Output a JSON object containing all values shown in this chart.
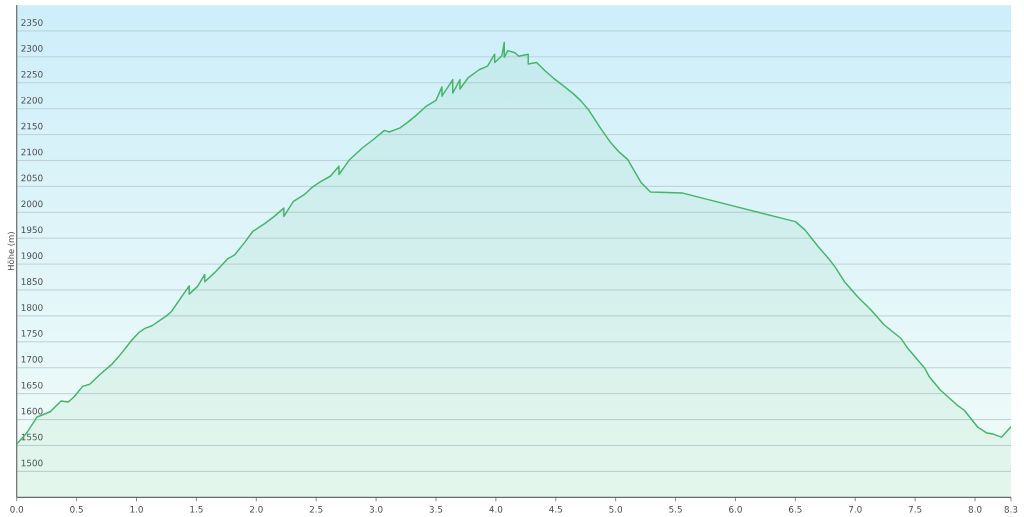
{
  "chart_data": {
    "type": "area",
    "ylabel": "Höhe (m)",
    "x": [
      0.0,
      0.08,
      0.17,
      0.28,
      0.37,
      0.43,
      0.48,
      0.55,
      0.61,
      0.69,
      0.8,
      0.85,
      0.96,
      1.02,
      1.07,
      1.13,
      1.21,
      1.25,
      1.29,
      1.44,
      1.44,
      1.51,
      1.57,
      1.57,
      1.65,
      1.76,
      1.82,
      1.9,
      1.97,
      2.07,
      2.15,
      2.23,
      2.23,
      2.31,
      2.4,
      2.46,
      2.53,
      2.62,
      2.69,
      2.69,
      2.78,
      2.89,
      2.98,
      3.07,
      3.11,
      3.2,
      3.26,
      3.33,
      3.42,
      3.5,
      3.55,
      3.55,
      3.64,
      3.64,
      3.7,
      3.7,
      3.77,
      3.86,
      3.93,
      3.99,
      3.99,
      4.05,
      4.07,
      4.07,
      4.1,
      4.16,
      4.19,
      4.27,
      4.27,
      4.34,
      4.41,
      4.48,
      4.57,
      4.65,
      4.71,
      4.77,
      4.88,
      4.96,
      5.03,
      5.1,
      5.21,
      5.29,
      5.56,
      6.5,
      6.58,
      6.69,
      6.78,
      6.83,
      6.91,
      7.02,
      7.13,
      7.24,
      7.31,
      7.38,
      7.44,
      7.58,
      7.62,
      7.71,
      7.85,
      7.91,
      8.02,
      8.1,
      8.15,
      8.22,
      8.3
    ],
    "series": [
      {
        "color": "#45b56a",
        "values": [
          1553,
          1573,
          1605,
          1615,
          1636,
          1634,
          1644,
          1664,
          1668,
          1686,
          1708,
          1721,
          1753,
          1768,
          1776,
          1781,
          1794,
          1800,
          1808,
          1858,
          1842,
          1857,
          1880,
          1866,
          1883,
          1910,
          1918,
          1941,
          1963,
          1978,
          1992,
          2008,
          1992,
          2021,
          2034,
          2047,
          2058,
          2070,
          2089,
          2073,
          2102,
          2125,
          2141,
          2158,
          2155,
          2163,
          2173,
          2186,
          2205,
          2216,
          2242,
          2224,
          2256,
          2230,
          2256,
          2238,
          2260,
          2275,
          2282,
          2305,
          2289,
          2302,
          2328,
          2299,
          2312,
          2308,
          2301,
          2305,
          2286,
          2289,
          2273,
          2259,
          2243,
          2228,
          2215,
          2199,
          2160,
          2134,
          2116,
          2102,
          2058,
          2039,
          2037,
          1982,
          1966,
          1934,
          1910,
          1895,
          1866,
          1837,
          1812,
          1783,
          1770,
          1757,
          1737,
          1699,
          1682,
          1657,
          1628,
          1618,
          1586,
          1574,
          1572,
          1566,
          1586
        ]
      }
    ],
    "xlim": [
      0,
      8.3
    ],
    "ylim": [
      1450,
      2400
    ],
    "xticks": [
      {
        "value": 0,
        "label": "0.0"
      },
      0.5,
      {
        "value": 1,
        "label": "1.0"
      },
      1.5,
      {
        "value": 2,
        "label": "2.0"
      },
      2.5,
      {
        "value": 3,
        "label": "3.0"
      },
      3.5,
      {
        "value": 4,
        "label": "4.0"
      },
      4.5,
      {
        "value": 5,
        "label": "5.0"
      },
      5.5,
      {
        "value": 6,
        "label": "6.0"
      },
      6.5,
      {
        "value": 7,
        "label": "7.0"
      },
      7.5,
      {
        "value": 8,
        "label": "8.0"
      },
      8.3
    ],
    "yticks": [
      1500,
      1550,
      1600,
      1650,
      1700,
      1750,
      1800,
      1850,
      1900,
      1950,
      2000,
      2050,
      2100,
      2150,
      2200,
      2250,
      2300,
      2350
    ],
    "grid": "y"
  }
}
